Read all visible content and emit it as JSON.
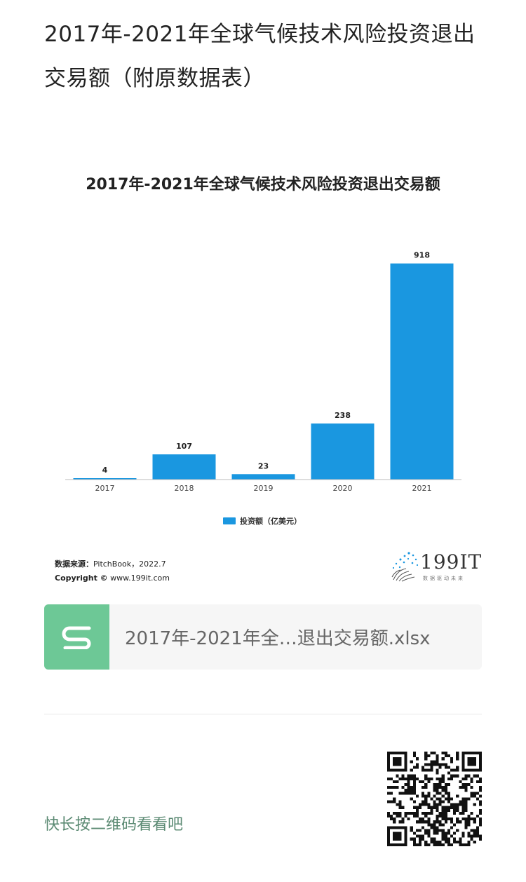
{
  "article": {
    "title": "2017年-2021年全球气候技术风险投资退出交易额（附原数据表）"
  },
  "chart_data": {
    "type": "bar",
    "title": "2017年-2021年全球气候技术风险投资退出交易额",
    "categories": [
      "2017",
      "2018",
      "2019",
      "2020",
      "2021"
    ],
    "series": [
      {
        "name": "投资额（亿美元）",
        "values": [
          4,
          107,
          23,
          238,
          918
        ]
      }
    ],
    "ylim": [
      0,
      950
    ],
    "bar_color": "#1a97e0",
    "grid": false,
    "legend_position": "bottom"
  },
  "source": {
    "label": "数据来源：",
    "text": "PitchBook，2022.7",
    "copyright_label": "Copyright ©",
    "copyright_text": " www.199it.com"
  },
  "logo": {
    "text": "199IT",
    "sub": "数据驱动未来"
  },
  "attachment": {
    "filename": "2017年-2021年全…退出交易额.xlsx",
    "icon": "spreadsheet-s-icon",
    "icon_color": "#6dc896"
  },
  "footer": {
    "qr_hint": "快长按二维码看看吧"
  }
}
